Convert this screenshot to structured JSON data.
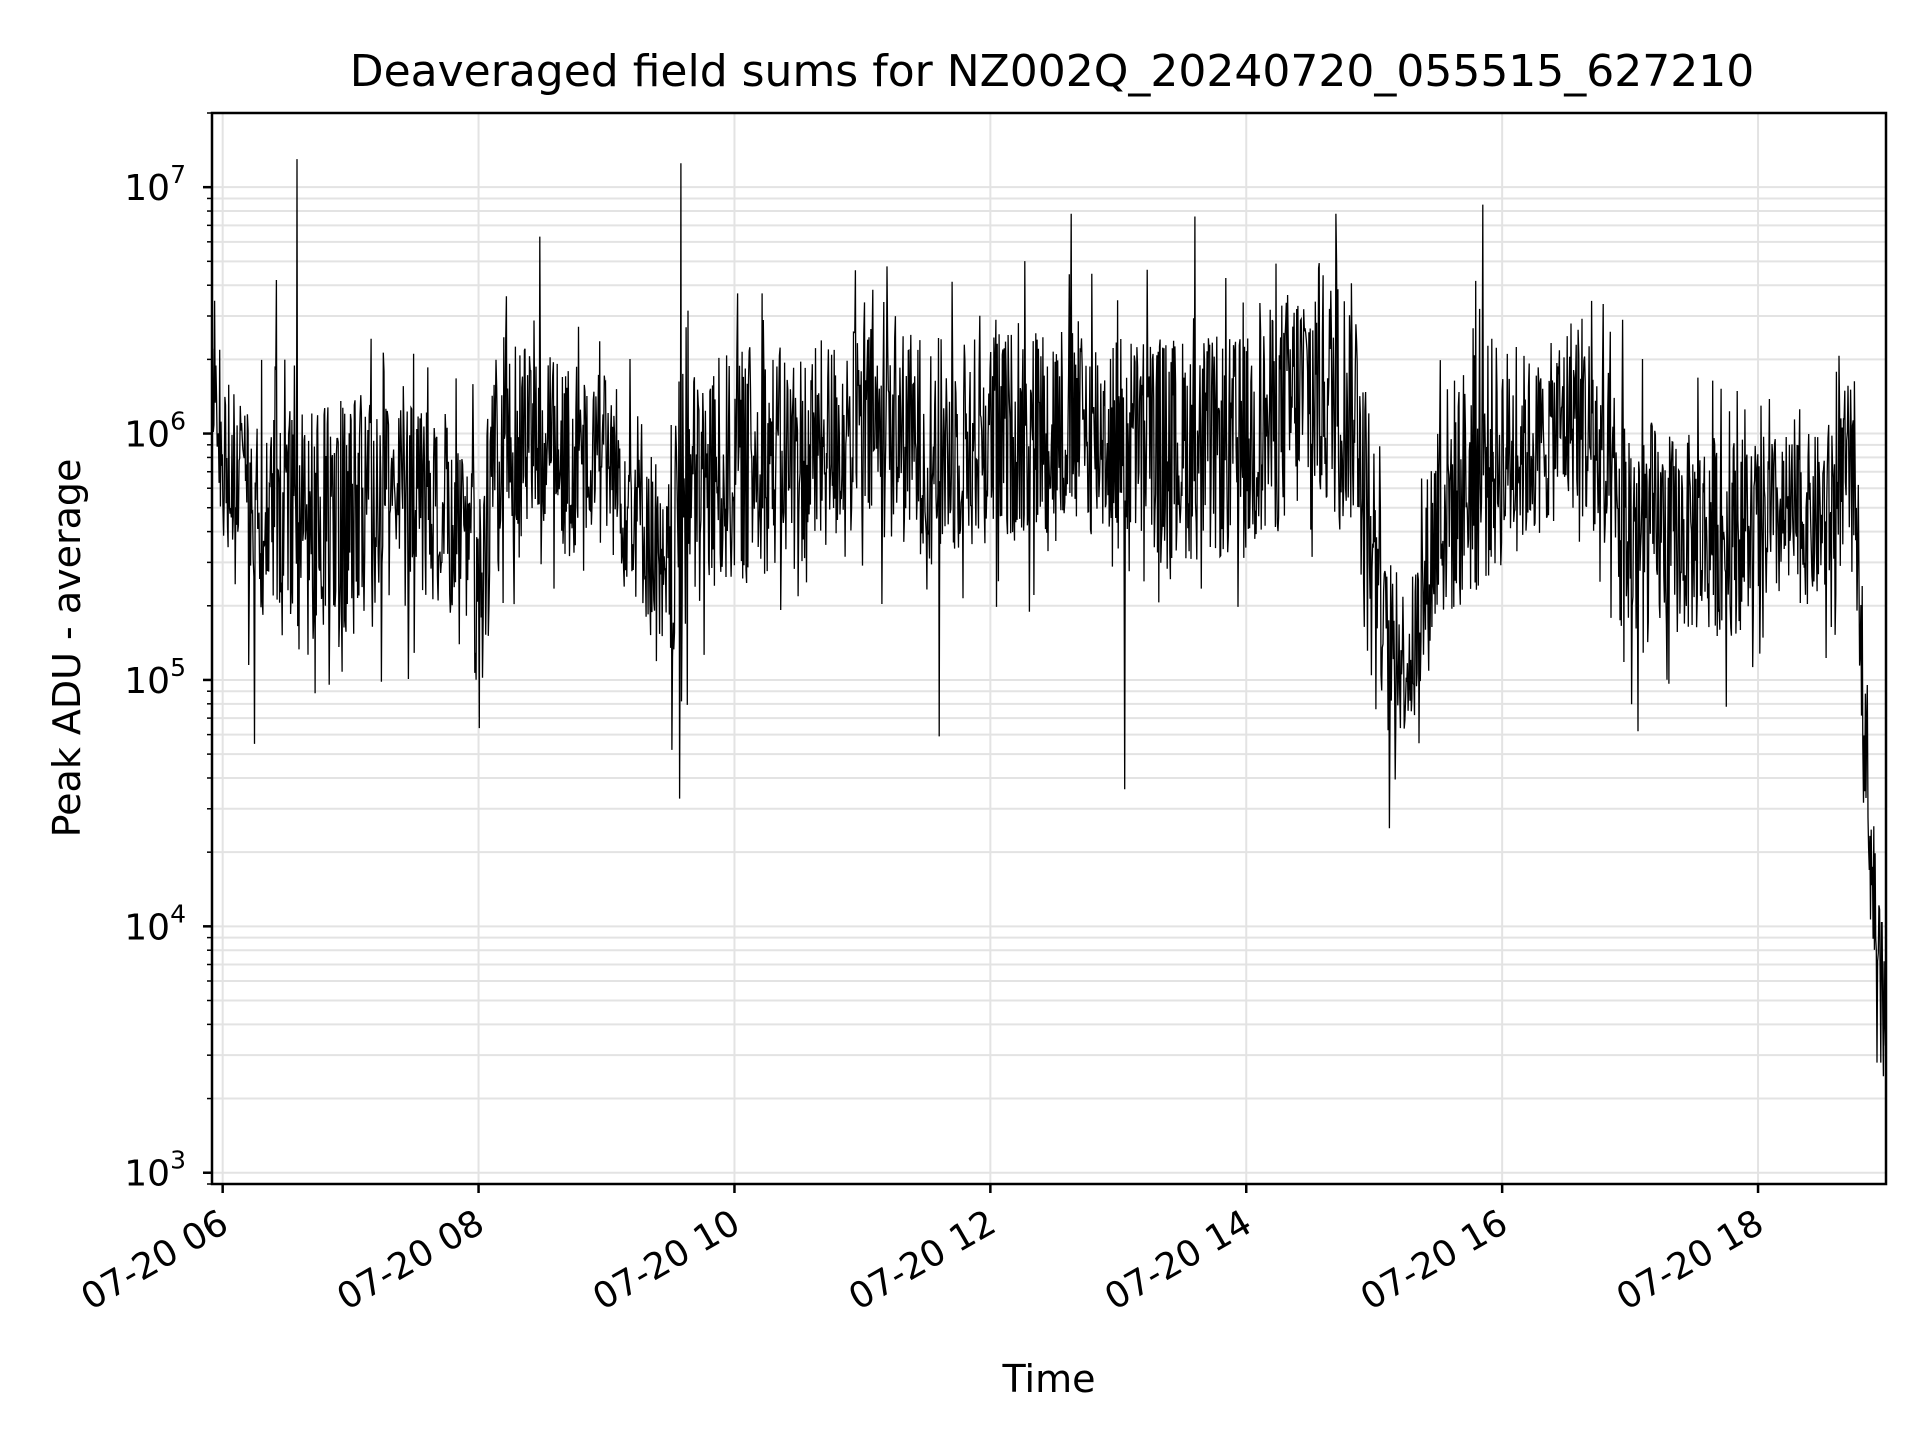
{
  "chart_data": {
    "type": "line",
    "title": "Deaveraged field sums for NZ002Q_20240720_055515_627210",
    "xlabel": "Time",
    "ylabel": "Peak ADU - average",
    "xlim": [
      "2024-07-20 05:55",
      "2024-07-20 19:00"
    ],
    "ylim": [
      900,
      20000000
    ],
    "yscale": "log",
    "grid": true,
    "xticks": [
      "07-20 06",
      "07-20 08",
      "07-20 10",
      "07-20 12",
      "07-20 14",
      "07-20 16",
      "07-20 18"
    ],
    "xtick_hours": [
      6,
      8,
      10,
      12,
      14,
      16,
      18
    ],
    "yticks": [
      {
        "base": "10",
        "exp": "3",
        "value": 1000
      },
      {
        "base": "10",
        "exp": "4",
        "value": 10000
      },
      {
        "base": "10",
        "exp": "5",
        "value": 100000
      },
      {
        "base": "10",
        "exp": "6",
        "value": 1000000
      },
      {
        "base": "10",
        "exp": "7",
        "value": 10000000
      }
    ],
    "series_color": "#000000",
    "envelope_hours": [
      5.93,
      6.2,
      6.6,
      7.0,
      7.5,
      7.9,
      8.0,
      8.2,
      8.6,
      9.0,
      9.3,
      9.45,
      9.6,
      10.0,
      10.6,
      11.0,
      11.6,
      12.0,
      12.6,
      13.0,
      13.6,
      14.0,
      14.5,
      14.9,
      15.1,
      15.3,
      15.5,
      15.9,
      16.3,
      16.6,
      16.9,
      17.3,
      17.8,
      18.2,
      18.5,
      18.75,
      18.88,
      18.95,
      19.0
    ],
    "envelope_low": [
      500000,
      200000,
      120000,
      150000,
      200000,
      150000,
      80000,
      350000,
      400000,
      350000,
      180000,
      80000,
      150000,
      250000,
      300000,
      400000,
      300000,
      350000,
      400000,
      350000,
      300000,
      300000,
      500000,
      400000,
      60000,
      60000,
      150000,
      250000,
      400000,
      500000,
      120000,
      150000,
      150000,
      200000,
      200000,
      350000,
      10000,
      3000,
      2000
    ],
    "envelope_high": [
      2500000,
      1200000,
      1300000,
      1400000,
      1300000,
      1200000,
      900000,
      2500000,
      2000000,
      1800000,
      1200000,
      500000,
      1800000,
      2200000,
      2300000,
      2800000,
      2500000,
      2600000,
      3000000,
      2600000,
      2500000,
      2500000,
      5000000,
      4000000,
      250000,
      250000,
      1500000,
      2500000,
      2000000,
      3500000,
      1500000,
      1000000,
      1000000,
      1000000,
      1000000,
      1800000,
      40000,
      15000,
      6000
    ],
    "spikes": [
      {
        "hour": 6.58,
        "value": 13000000
      },
      {
        "hour": 9.58,
        "value": 12500000
      },
      {
        "hour": 6.42,
        "value": 4200000
      },
      {
        "hour": 8.48,
        "value": 6300000
      },
      {
        "hour": 12.63,
        "value": 7800000
      },
      {
        "hour": 13.6,
        "value": 7600000
      },
      {
        "hour": 14.7,
        "value": 7800000
      },
      {
        "hour": 15.85,
        "value": 8500000
      },
      {
        "hour": 13.05,
        "value": 36000
      },
      {
        "hour": 9.57,
        "value": 33000
      },
      {
        "hour": 15.12,
        "value": 25000
      },
      {
        "hour": 11.6,
        "value": 59000
      },
      {
        "hour": 6.25,
        "value": 55000
      },
      {
        "hour": 18.93,
        "value": 2800
      }
    ]
  }
}
